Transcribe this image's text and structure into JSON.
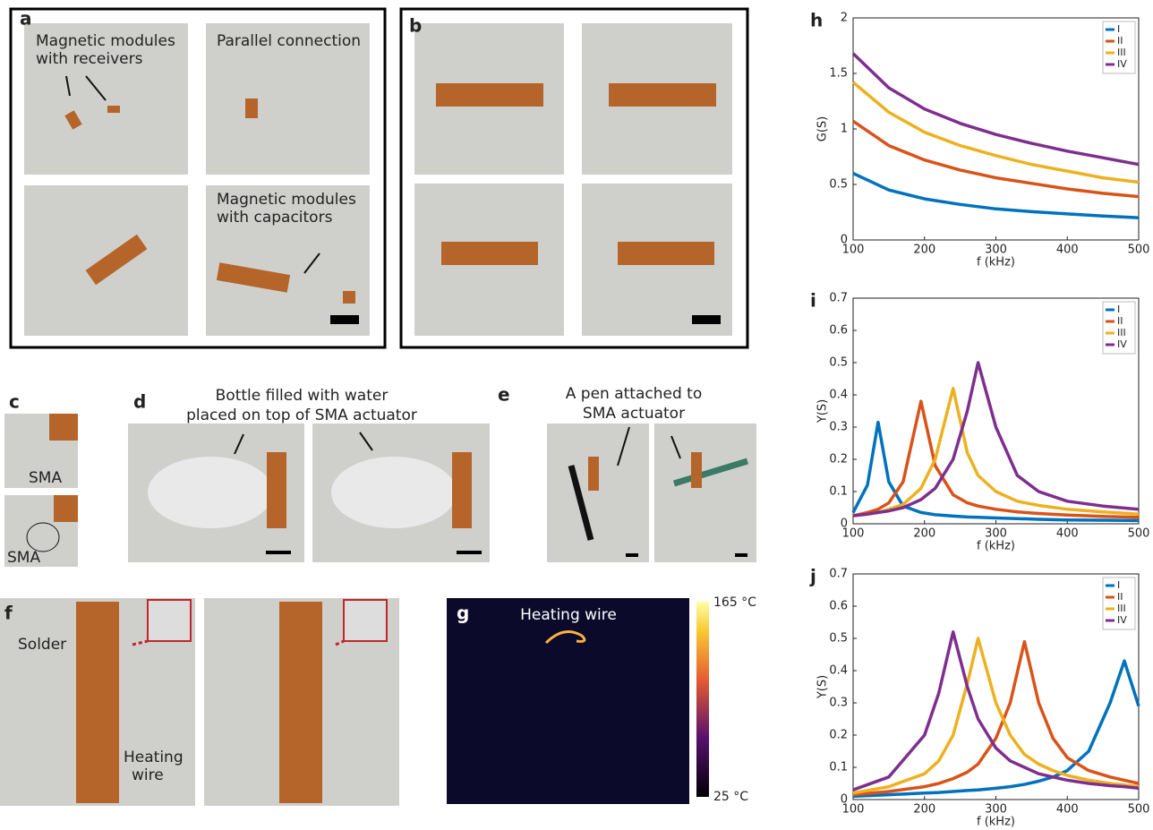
{
  "panels": {
    "a": {
      "label": "a",
      "texts": [
        "Magnetic modules",
        "with receivers",
        "Parallel connection",
        "Magnetic modules",
        "with capacitors"
      ]
    },
    "b": {
      "label": "b"
    },
    "c": {
      "label": "c",
      "texts": [
        "SMA",
        "SMA"
      ]
    },
    "d": {
      "label": "d",
      "texts": [
        "Bottle filled with water",
        "placed on top of SMA actuator"
      ]
    },
    "e": {
      "label": "e",
      "texts": [
        "A pen attached to",
        "SMA actuator"
      ]
    },
    "f": {
      "label": "f",
      "texts": [
        "Solder",
        "Heating",
        "wire"
      ]
    },
    "g": {
      "label": "g",
      "title": "Heating wire",
      "colorbar_max": "165 °C",
      "colorbar_min": "25 °C"
    }
  },
  "chart_data": [
    {
      "type": "line",
      "label": "h",
      "ylabel": "G(S)",
      "xlabel": "f (kHz)",
      "legend": "upper right",
      "xlim": [
        100,
        500
      ],
      "ylim": [
        0,
        2
      ],
      "xticks": [
        100,
        200,
        300,
        400,
        500
      ],
      "yticks": [
        0,
        0.5,
        1,
        1.5,
        2
      ],
      "x": [
        100,
        150,
        200,
        250,
        300,
        350,
        400,
        450,
        500
      ],
      "series": [
        {
          "name": "I",
          "color": "#0072bd",
          "values": [
            0.6,
            0.45,
            0.37,
            0.32,
            0.28,
            0.255,
            0.235,
            0.215,
            0.2
          ]
        },
        {
          "name": "II",
          "color": "#d95319",
          "values": [
            1.07,
            0.85,
            0.72,
            0.63,
            0.56,
            0.51,
            0.46,
            0.42,
            0.39
          ]
        },
        {
          "name": "III",
          "color": "#edb120",
          "values": [
            1.42,
            1.15,
            0.97,
            0.85,
            0.76,
            0.68,
            0.62,
            0.56,
            0.52
          ]
        },
        {
          "name": "IV",
          "color": "#7e2f8e",
          "values": [
            1.68,
            1.37,
            1.18,
            1.05,
            0.95,
            0.87,
            0.8,
            0.74,
            0.68
          ]
        }
      ]
    },
    {
      "type": "line",
      "label": "i",
      "ylabel": "Y(S)",
      "xlabel": "f (kHz)",
      "legend": "upper right",
      "xlim": [
        100,
        500
      ],
      "ylim": [
        0,
        0.7
      ],
      "xticks": [
        100,
        200,
        300,
        400,
        500
      ],
      "yticks": [
        0,
        0.1,
        0.2,
        0.3,
        0.4,
        0.5,
        0.6,
        0.7
      ],
      "x": [
        100,
        120,
        135,
        150,
        170,
        195,
        215,
        240,
        260,
        275,
        300,
        330,
        360,
        400,
        450,
        500
      ],
      "series": [
        {
          "name": "I",
          "color": "#0072bd",
          "values": [
            0.035,
            0.12,
            0.315,
            0.13,
            0.055,
            0.035,
            0.028,
            0.024,
            0.021,
            0.02,
            0.018,
            0.016,
            0.014,
            0.012,
            0.011,
            0.01
          ]
        },
        {
          "name": "II",
          "color": "#d95319",
          "values": [
            0.025,
            0.035,
            0.045,
            0.065,
            0.13,
            0.38,
            0.18,
            0.09,
            0.065,
            0.055,
            0.045,
            0.037,
            0.032,
            0.027,
            0.023,
            0.02
          ]
        },
        {
          "name": "III",
          "color": "#edb120",
          "values": [
            0.025,
            0.03,
            0.035,
            0.045,
            0.06,
            0.11,
            0.2,
            0.42,
            0.22,
            0.15,
            0.1,
            0.07,
            0.057,
            0.045,
            0.037,
            0.03
          ]
        },
        {
          "name": "IV",
          "color": "#7e2f8e",
          "values": [
            0.025,
            0.03,
            0.035,
            0.04,
            0.05,
            0.075,
            0.11,
            0.2,
            0.35,
            0.5,
            0.3,
            0.15,
            0.1,
            0.07,
            0.055,
            0.045
          ]
        }
      ]
    },
    {
      "type": "line",
      "label": "j",
      "ylabel": "Y(S)",
      "xlabel": "f (kHz)",
      "legend": "upper right",
      "xlim": [
        100,
        500
      ],
      "ylim": [
        0,
        0.7
      ],
      "xticks": [
        100,
        200,
        300,
        400,
        500
      ],
      "yticks": [
        0,
        0.1,
        0.2,
        0.3,
        0.4,
        0.5,
        0.6,
        0.7
      ],
      "x": [
        100,
        150,
        200,
        220,
        240,
        260,
        275,
        300,
        320,
        340,
        360,
        380,
        400,
        430,
        460,
        480,
        500
      ],
      "series": [
        {
          "name": "I",
          "color": "#0072bd",
          "values": [
            0.01,
            0.015,
            0.02,
            0.022,
            0.025,
            0.028,
            0.03,
            0.035,
            0.04,
            0.047,
            0.057,
            0.07,
            0.09,
            0.15,
            0.3,
            0.43,
            0.29
          ]
        },
        {
          "name": "II",
          "color": "#d95319",
          "values": [
            0.015,
            0.025,
            0.04,
            0.05,
            0.065,
            0.085,
            0.11,
            0.19,
            0.3,
            0.49,
            0.3,
            0.19,
            0.13,
            0.09,
            0.07,
            0.06,
            0.05
          ]
        },
        {
          "name": "III",
          "color": "#edb120",
          "values": [
            0.02,
            0.04,
            0.08,
            0.12,
            0.2,
            0.36,
            0.5,
            0.3,
            0.2,
            0.14,
            0.11,
            0.09,
            0.075,
            0.06,
            0.05,
            0.045,
            0.04
          ]
        },
        {
          "name": "IV",
          "color": "#7e2f8e",
          "values": [
            0.03,
            0.07,
            0.2,
            0.33,
            0.52,
            0.35,
            0.25,
            0.16,
            0.12,
            0.1,
            0.08,
            0.07,
            0.06,
            0.05,
            0.043,
            0.04,
            0.035
          ]
        }
      ]
    }
  ]
}
